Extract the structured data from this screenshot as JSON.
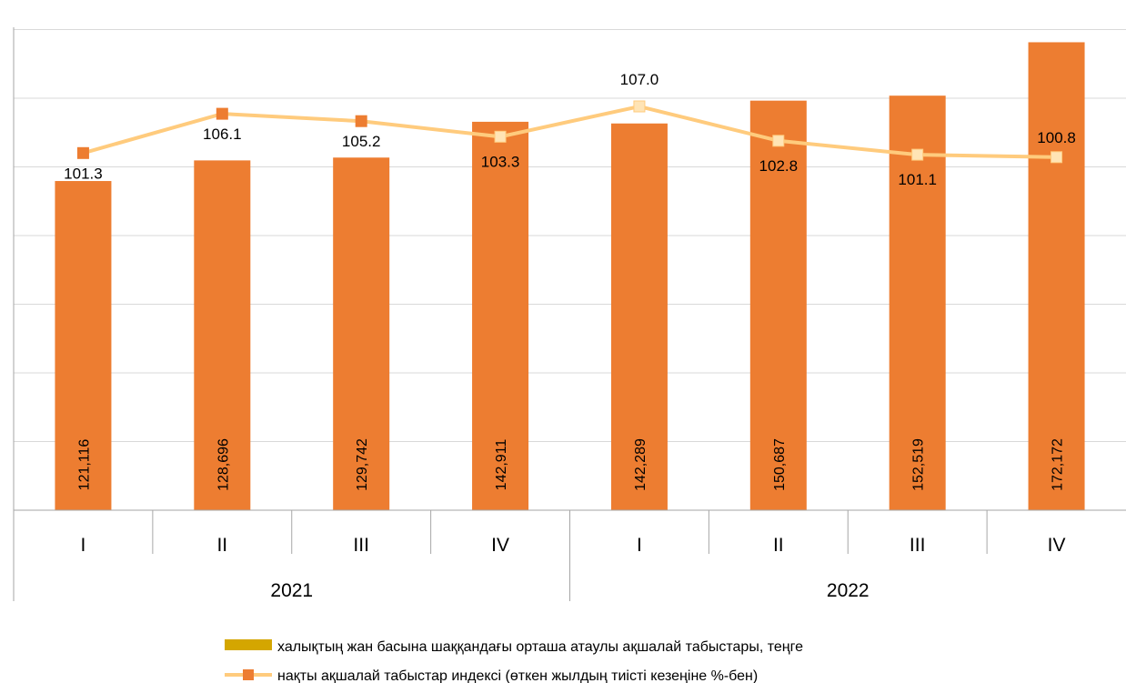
{
  "chart_data": {
    "type": "bar+line",
    "categories": [
      "I",
      "II",
      "III",
      "IV",
      "I",
      "II",
      "III",
      "IV"
    ],
    "groups": [
      {
        "label": "2021",
        "span": 4
      },
      {
        "label": "2022",
        "span": 4
      }
    ],
    "bar_series": {
      "name": "халықтың жан басына шаққандағы орташа атаулы ақшалай табыстары, теңге",
      "values": [
        121116,
        128696,
        129742,
        142911,
        142289,
        150687,
        152519,
        172172
      ],
      "labels": [
        "121,116",
        "128,696",
        "129,742",
        "142,911",
        "142,289",
        "150,687",
        "152,519",
        "172,172"
      ],
      "color": "#ED7D31",
      "legend_color": "#D4A600",
      "ylim": [
        0,
        175000
      ]
    },
    "line_series": {
      "name": "нақты ақшалай табыстар индексі (өткен жылдың тиісті кезеңіне %-бен)",
      "values": [
        101.3,
        106.1,
        105.2,
        103.3,
        107.0,
        102.8,
        101.1,
        100.8
      ],
      "labels": [
        "101.3",
        "106.1",
        "105.2",
        "103.3",
        "107.0",
        "102.8",
        "101.1",
        "100.8"
      ],
      "color": "#FFCB7D",
      "marker_color": "#ED7D31",
      "marker_fill_hollow": "#FFE4B5"
    },
    "grid": true,
    "legend_position": "bottom"
  }
}
